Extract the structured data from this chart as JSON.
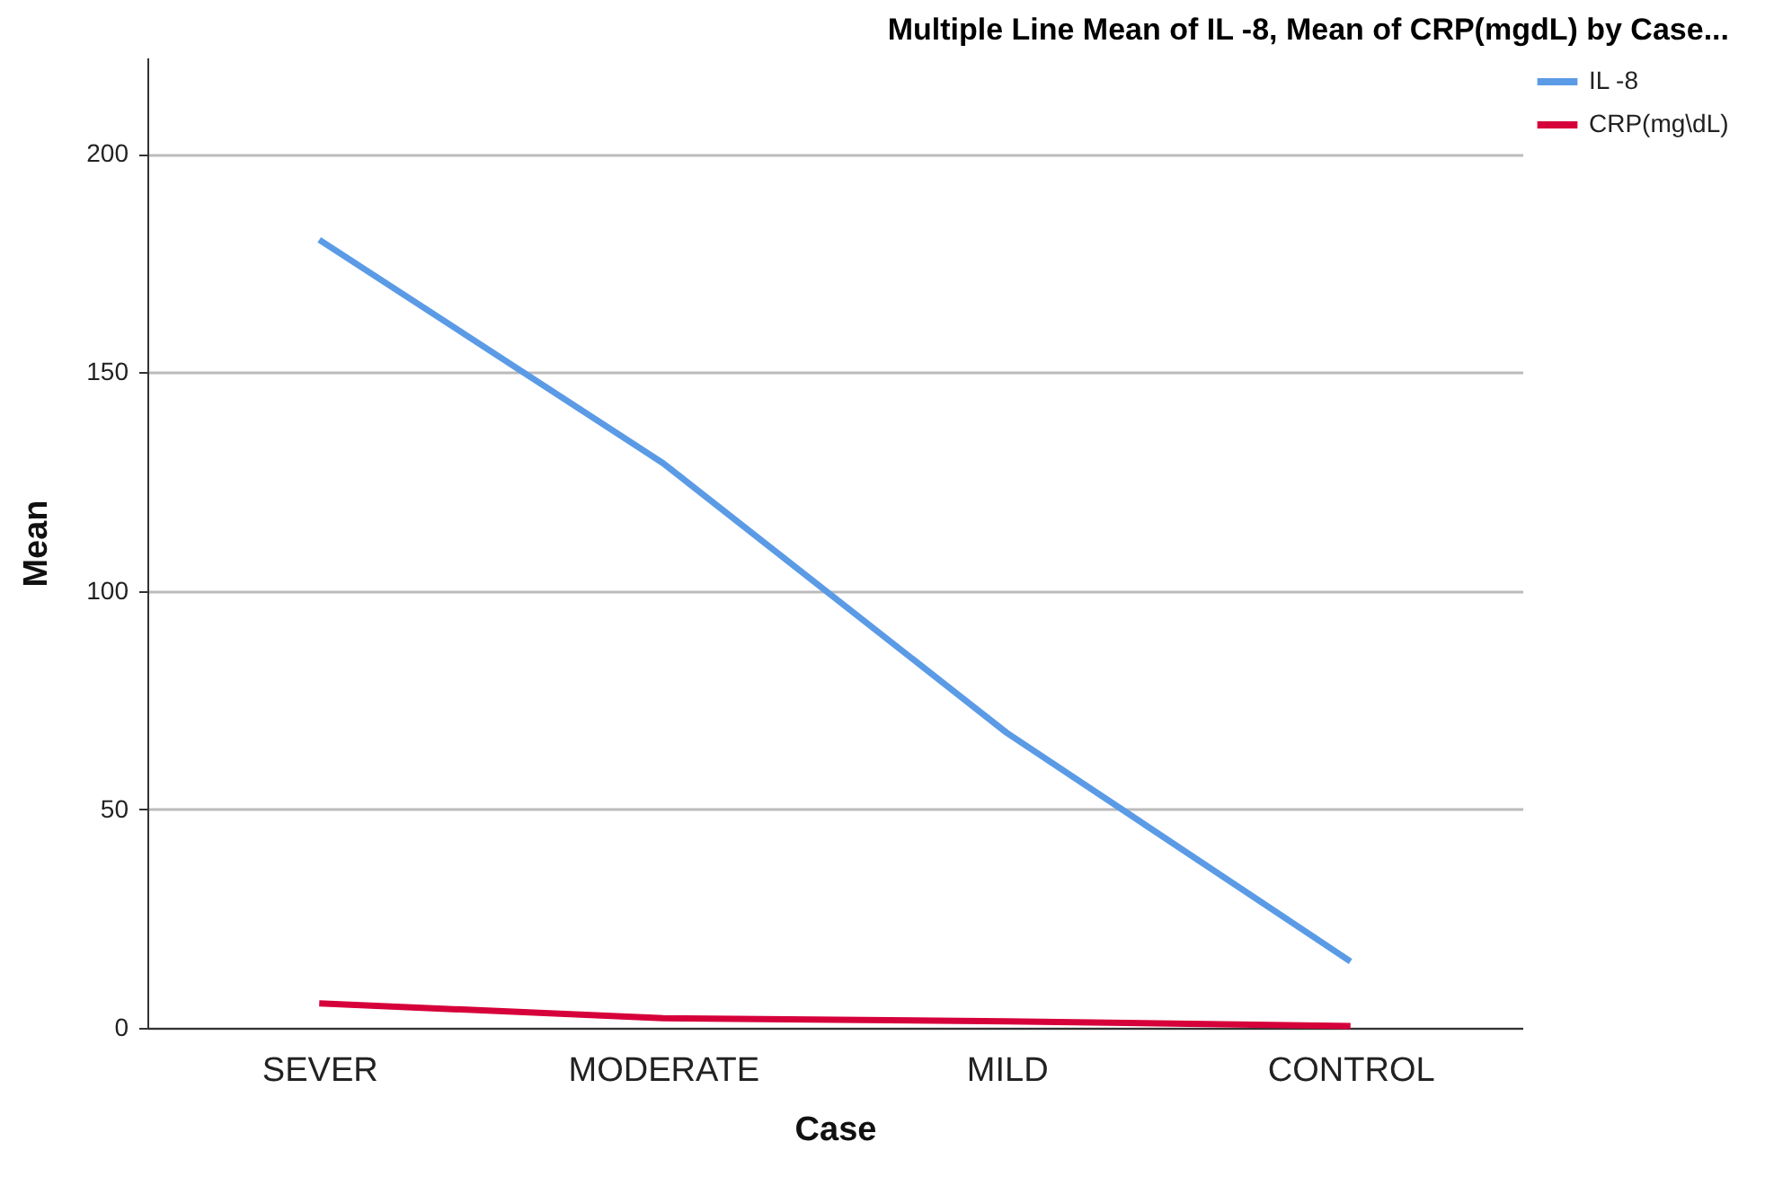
{
  "chart_data": {
    "type": "line",
    "title": "Multiple Line Mean of IL -8, Mean of CRP(mgdL) by Case...",
    "xlabel": "Case",
    "ylabel": "Mean",
    "categories": [
      "SEVER",
      "MODERATE",
      "MILD",
      "CONTROL"
    ],
    "series": [
      {
        "name": "IL -8",
        "color": "#5b9be6",
        "values": [
          180.3,
          129.2,
          67.5,
          15.2
        ]
      },
      {
        "name": "CRP(mg\\dL)",
        "color": "#d6003a",
        "values": [
          5.6,
          2.2,
          1.5,
          0.4
        ]
      }
    ],
    "ylim": [
      0,
      222
    ],
    "yticks": [
      0,
      50,
      100,
      150,
      200
    ],
    "grid": "y",
    "legend": "top right",
    "marker": "none",
    "line_style": "solid"
  }
}
